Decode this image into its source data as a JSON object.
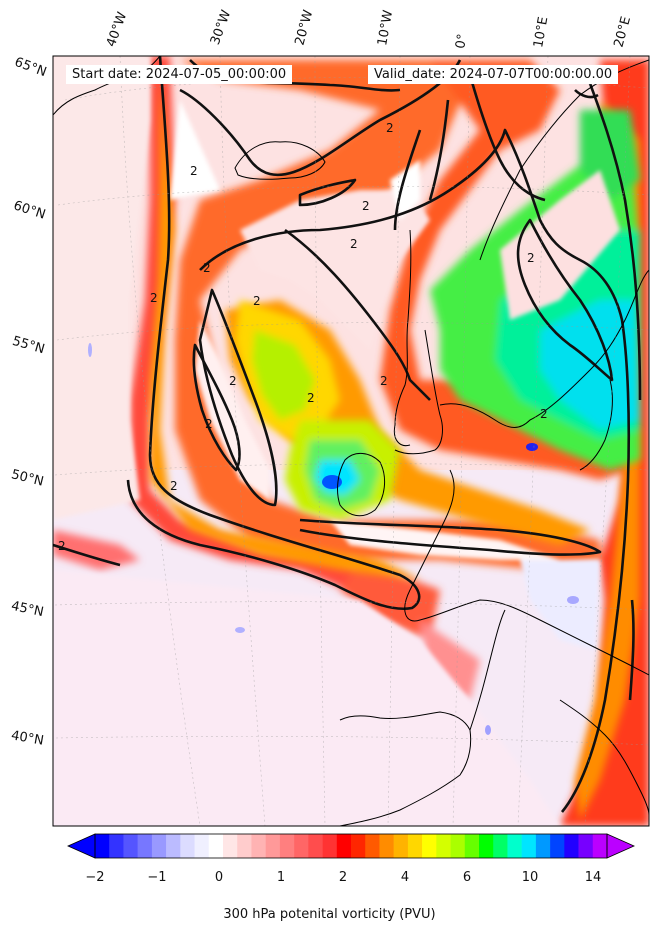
{
  "header": {
    "start_date": "Start date: 2024-07-05_00:00:00",
    "valid_date": "Valid_date: 2024-07-07T00:00:00.00"
  },
  "map": {
    "lon_labels": [
      "40°W",
      "30°W",
      "20°W",
      "10°W",
      "0°",
      "10°E",
      "20°E"
    ],
    "lat_labels": [
      "65°N",
      "60°N",
      "55°N",
      "50°N",
      "45°N",
      "40°N"
    ],
    "contour_label": "2"
  },
  "colorbar": {
    "ticks": [
      "−2",
      "−1",
      "0",
      "1",
      "2",
      "4",
      "6",
      "10",
      "14"
    ],
    "label": "300 hPa potenital vorticity (PVU)",
    "colors": [
      "#0000ff",
      "#3333ff",
      "#5555ff",
      "#7777ff",
      "#9999ff",
      "#bbbbff",
      "#dcdcff",
      "#f0f0ff",
      "#ffffff",
      "#ffe6e6",
      "#ffcccc",
      "#ffb3b3",
      "#ff9999",
      "#ff7f7f",
      "#ff6666",
      "#ff4d4d",
      "#ff3333",
      "#ff0000",
      "#ff2600",
      "#ff5a00",
      "#ff8c00",
      "#ffb300",
      "#ffd700",
      "#ffff00",
      "#d4ff00",
      "#aaff00",
      "#66ff00",
      "#00ff00",
      "#00ff66",
      "#00ffcc",
      "#00e5ff",
      "#0099ff",
      "#0044ff",
      "#2200ff",
      "#7700ff",
      "#bb00ff"
    ]
  }
}
